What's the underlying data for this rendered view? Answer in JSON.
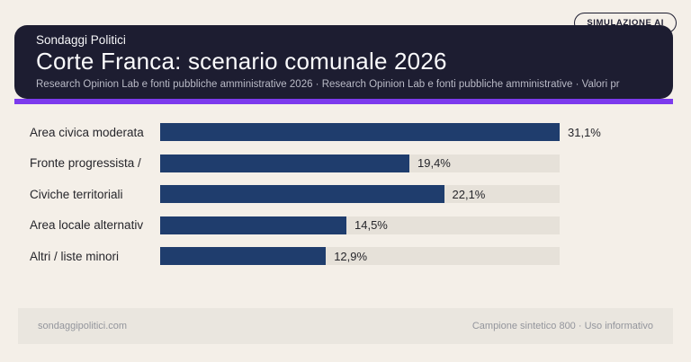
{
  "badge": {
    "label": "SIMULAZIONE AI"
  },
  "header": {
    "brand": "Sondaggi Politici",
    "title": "Corte Franca: scenario comunale 2026",
    "subtitle": "Research Opinion Lab e fonti pubbliche amministrative 2026 · Research Opinion Lab e fonti pubbliche amministrative · Valori pr"
  },
  "chart_data": {
    "type": "bar",
    "orientation": "horizontal",
    "title": "Corte Franca: scenario comunale 2026",
    "categories": [
      "Area civica moderata",
      "Fronte progressista /",
      "Civiche territoriali",
      "Area locale alternativ",
      "Altri / liste minori"
    ],
    "values": [
      31.1,
      19.4,
      22.1,
      14.5,
      12.9
    ],
    "value_labels": [
      "31,1%",
      "19,4%",
      "22,1%",
      "14,5%",
      "12,9%"
    ],
    "unit": "%",
    "axis_max": 31.1,
    "grid": false,
    "legend": false,
    "bar_color": "#1f3d6d",
    "track_color": "#e6e1d9",
    "accent_color": "#7c3aed",
    "header_bg_color": "#1d1d31"
  },
  "footer": {
    "left": "sondaggipolitici.com",
    "right": "Campione sintetico 800 · Uso informativo"
  }
}
